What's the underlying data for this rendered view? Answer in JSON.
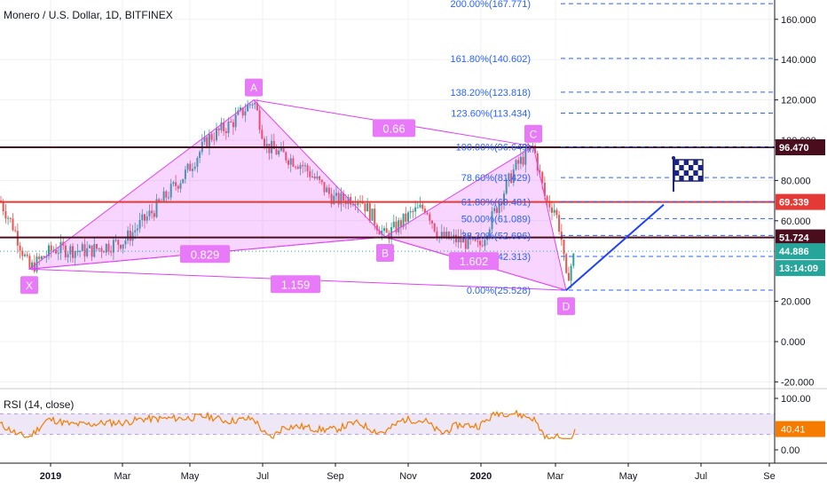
{
  "header": {
    "title": "Monero / U.S. Dollar, 1D, BITFINEX"
  },
  "rsi": {
    "title": "RSI (14, close)",
    "value": "40.41",
    "levels": [
      30,
      70
    ],
    "y_ticks": [
      "100.00",
      "0.00"
    ]
  },
  "colors": {
    "candle_up": "#26a69a",
    "candle_down": "#ef5350",
    "pattern": "#e040fb",
    "fib": "#2962ff",
    "projection": "#1e40ff",
    "level_red": "#e53935",
    "level_dark": "#4a0d1e",
    "rsi_line": "#f57c00",
    "rsi_band": "#ede7f6"
  },
  "chart_data": {
    "type": "candlestick",
    "y_axis": {
      "ticks": [
        "160.000",
        "140.000",
        "120.000",
        "100.000",
        "80.000",
        "60.000",
        "20.000",
        "0.000",
        "-20.000"
      ],
      "ylim": [
        -20,
        175
      ]
    },
    "x_axis": {
      "ticks": [
        "2019",
        "Mar",
        "May",
        "Jul",
        "Sep",
        "Nov",
        "2020",
        "Mar",
        "May",
        "Jul",
        "Se"
      ]
    },
    "price_labels": [
      {
        "text": "96.470",
        "value": 96.47,
        "style": "dark"
      },
      {
        "text": "69.339",
        "value": 69.339,
        "style": "red"
      },
      {
        "text": "51.724",
        "value": 51.724,
        "style": "dark"
      },
      {
        "text": "44.886",
        "value": 44.886,
        "style": "teal"
      },
      {
        "text": "13:14:09",
        "value": 36.5,
        "style": "teal"
      }
    ],
    "horizontal_levels": [
      {
        "value": 96.47,
        "style": "dark"
      },
      {
        "value": 69.339,
        "style": "red"
      },
      {
        "value": 51.724,
        "style": "dark"
      }
    ],
    "fib_levels": [
      {
        "label": "200.00%(167.771)",
        "value": 167.771
      },
      {
        "label": "161.80%(140.602)",
        "value": 140.602
      },
      {
        "label": "138.20%(123.818)",
        "value": 123.818
      },
      {
        "label": "123.60%(113.434)",
        "value": 113.434
      },
      {
        "label": "100.00%(96.649)",
        "value": 96.649
      },
      {
        "label": "78.60%(81.429)",
        "value": 81.429
      },
      {
        "label": "61.80%(69.481)",
        "value": 69.481
      },
      {
        "label": "50.00%(61.089)",
        "value": 61.089
      },
      {
        "label": "38.20%(52.696)",
        "value": 52.696
      },
      {
        "label": "23.60%(42.313)",
        "value": 42.313
      },
      {
        "label": "0.00%(25.528)",
        "value": 25.528
      }
    ],
    "pattern_points": [
      {
        "label": "X",
        "t": 33,
        "price": 36
      },
      {
        "label": "A",
        "t": 286,
        "price": 120
      },
      {
        "label": "B",
        "t": 434,
        "price": 52
      },
      {
        "label": "C",
        "t": 601,
        "price": 97
      },
      {
        "label": "D",
        "t": 638,
        "price": 25.5
      }
    ],
    "ratio_labels": [
      {
        "text": "0.829",
        "t": 231,
        "price": 43.5
      },
      {
        "text": "0.66",
        "t": 444,
        "price": 106
      },
      {
        "text": "1.159",
        "t": 333,
        "price": 28.5
      },
      {
        "text": "1.602",
        "t": 534,
        "price": 40
      }
    ]
  }
}
